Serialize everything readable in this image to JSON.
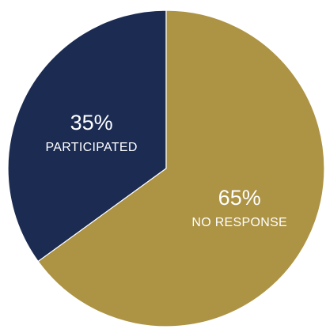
{
  "chart_data": {
    "type": "pie",
    "slices": [
      {
        "label": "PARTICIPATED",
        "value": 35,
        "value_label": "35%",
        "color": "#1b2b52"
      },
      {
        "label": "NO RESPONSE",
        "value": 65,
        "value_label": "65%",
        "color": "#ad9344"
      }
    ],
    "start": "top",
    "direction": "counterclockwise",
    "legend": "none",
    "labels": "inside"
  }
}
